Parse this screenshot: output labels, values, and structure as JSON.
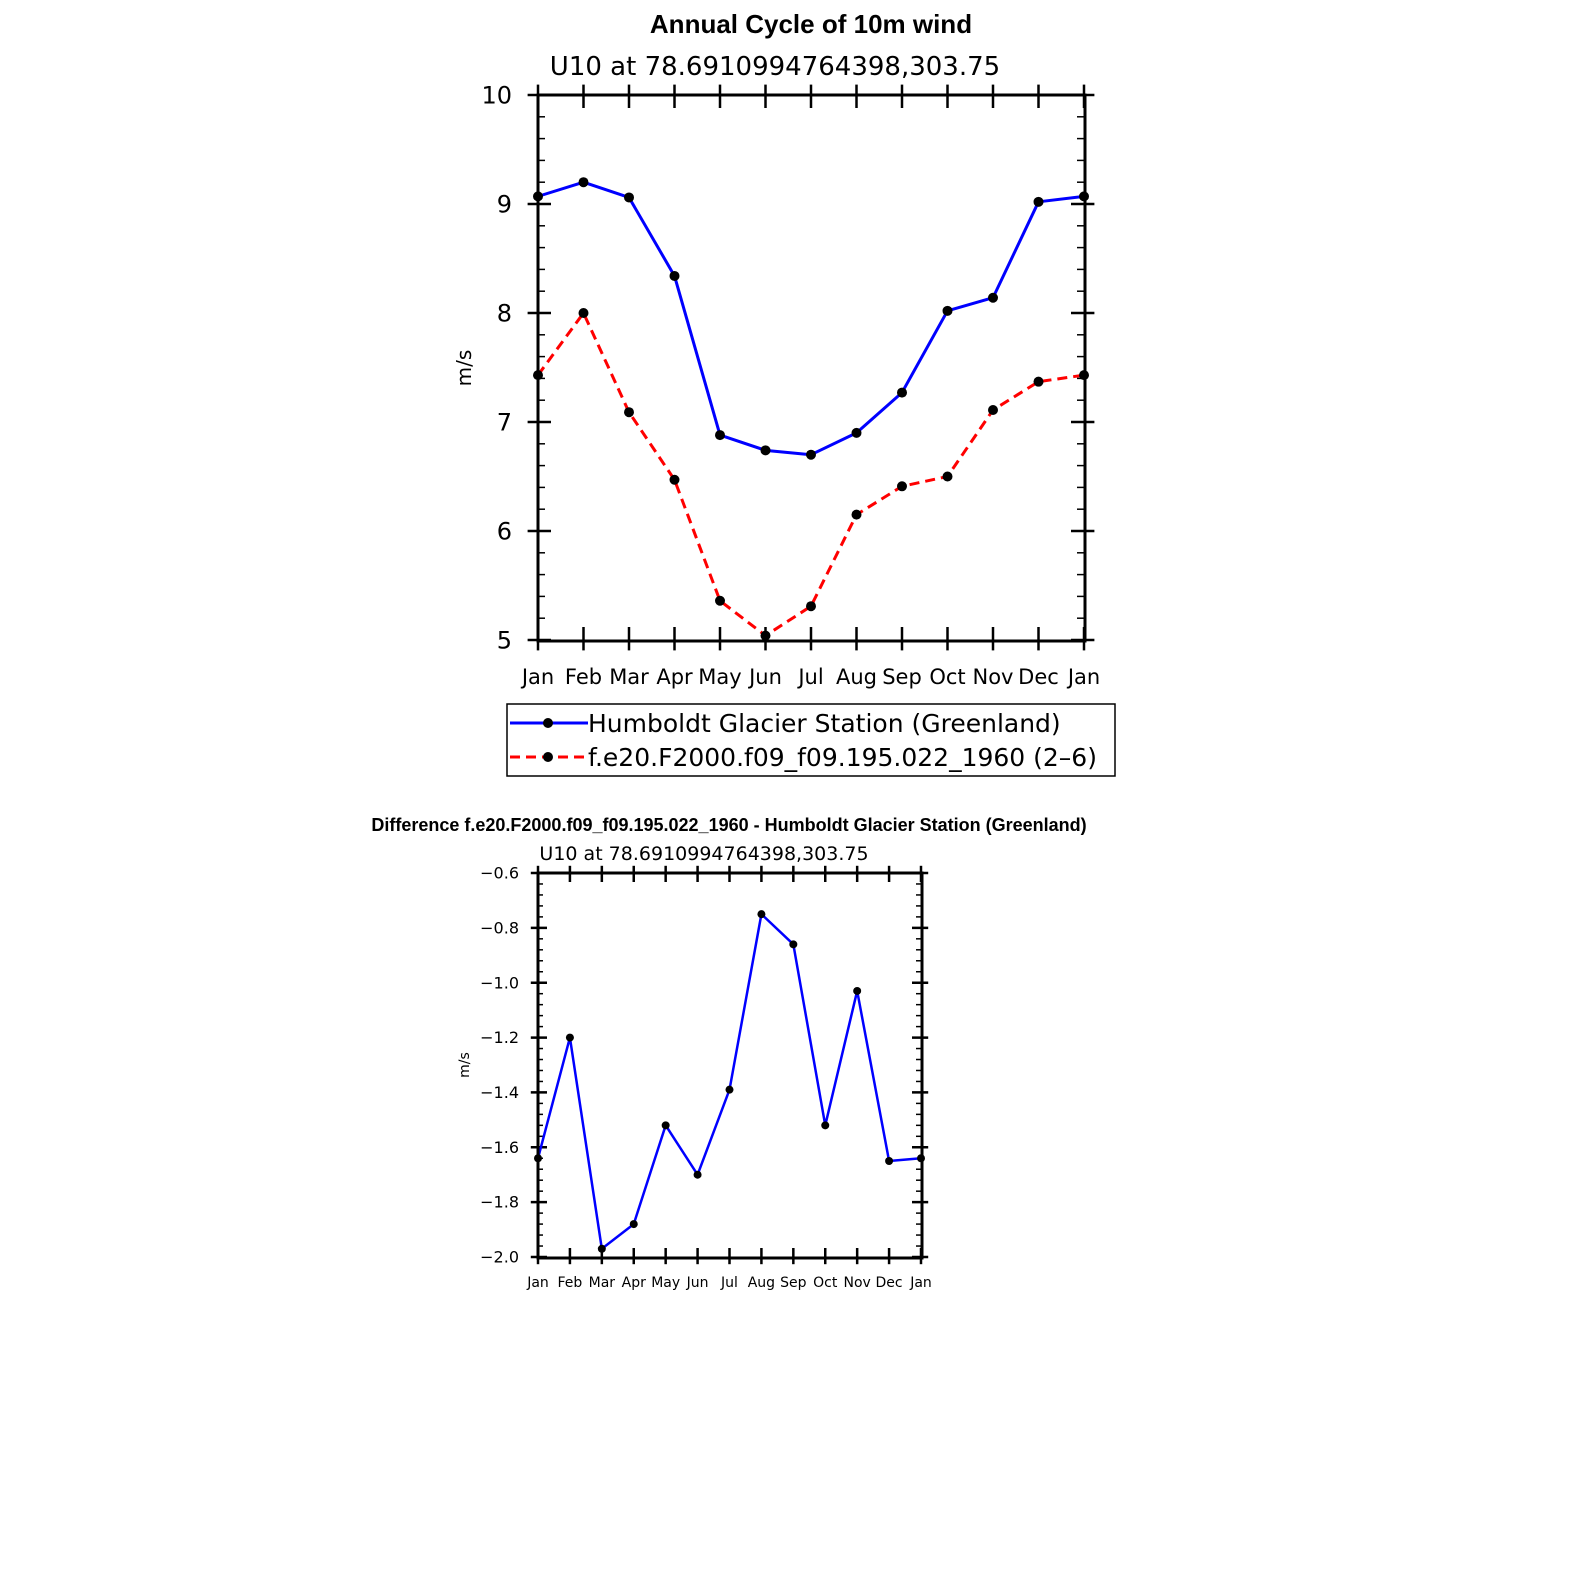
{
  "chart_data": [
    {
      "type": "line",
      "title": "Annual Cycle of 10m wind",
      "subtitle": "U10  at  78.6910994764398,303.75",
      "ylabel": "m/s",
      "xlabel": "",
      "categories": [
        "Jan",
        "Feb",
        "Mar",
        "Apr",
        "May",
        "Jun",
        "Jul",
        "Aug",
        "Sep",
        "Oct",
        "Nov",
        "Dec",
        "Jan"
      ],
      "ylim": [
        5,
        10
      ],
      "yticks": [
        "5",
        "6",
        "7",
        "8",
        "9",
        "10"
      ],
      "grid": false,
      "legend_position": "bottom",
      "series": [
        {
          "name": "Humboldt Glacier Station (Greenland)",
          "color": "#0000ff",
          "dash": "solid",
          "values": [
            9.07,
            9.2,
            9.06,
            8.34,
            6.88,
            6.74,
            6.7,
            6.9,
            7.27,
            8.02,
            8.14,
            9.02,
            9.07
          ]
        },
        {
          "name": "f.e20.F2000.f09_f09.195.022_1960 (2–6)",
          "color": "#ff0000",
          "dash": "dashed",
          "values": [
            7.43,
            8.0,
            7.09,
            6.47,
            5.36,
            5.04,
            5.31,
            6.15,
            6.41,
            6.5,
            7.11,
            7.37,
            7.43
          ]
        }
      ]
    },
    {
      "type": "line",
      "title": "Difference f.e20.F2000.f09_f09.195.022_1960 - Humboldt Glacier Station (Greenland)",
      "subtitle": "U10  at  78.6910994764398,303.75",
      "ylabel": "m/s",
      "xlabel": "",
      "categories": [
        "Jan",
        "Feb",
        "Mar",
        "Apr",
        "May",
        "Jun",
        "Jul",
        "Aug",
        "Sep",
        "Oct",
        "Nov",
        "Dec",
        "Jan"
      ],
      "ylim": [
        -2.0,
        -0.6
      ],
      "yticks": [
        "−2.0",
        "−1.8",
        "−1.6",
        "−1.4",
        "−1.2",
        "−1.0",
        "−0.8",
        "−0.6"
      ],
      "grid": false,
      "series": [
        {
          "name": "",
          "color": "#0000ff",
          "dash": "solid",
          "values": [
            -1.64,
            -1.2,
            -1.97,
            -1.88,
            -1.52,
            -1.7,
            -1.39,
            -0.75,
            -0.86,
            -1.52,
            -1.03,
            -1.65,
            -1.64
          ]
        }
      ]
    }
  ]
}
